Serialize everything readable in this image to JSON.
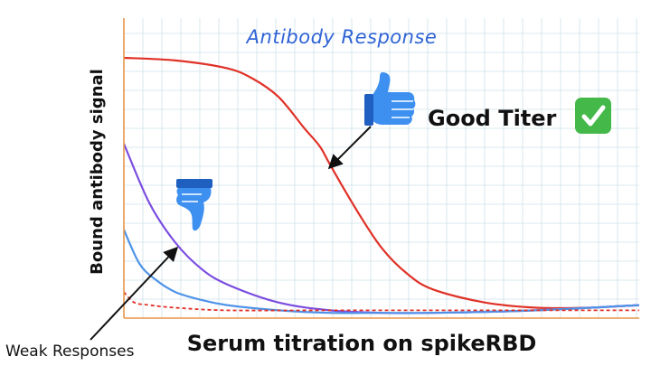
{
  "chart_data": {
    "type": "line",
    "title": "Antibody Response",
    "xlabel": "Serum titration on spikeRBD",
    "ylabel": "Bound antibody signal",
    "xlim": [
      0,
      100
    ],
    "ylim": [
      0,
      100
    ],
    "grid": true,
    "series": [
      {
        "color": "#e03127",
        "dashed": false,
        "x": [
          0,
          10,
          20,
          25,
          30,
          35,
          38,
          40,
          45,
          50,
          55,
          60,
          70,
          80,
          90,
          100
        ],
        "y": [
          100,
          99,
          96,
          92,
          85,
          73,
          66,
          59,
          42,
          27,
          17,
          11,
          6,
          4,
          4,
          5
        ]
      },
      {
        "color": "#7b4de0",
        "dashed": false,
        "x": [
          0,
          5,
          10,
          15,
          20,
          30,
          40,
          50,
          60,
          80,
          100
        ],
        "y": [
          67,
          44,
          29,
          19,
          13,
          6,
          3,
          2,
          2,
          3,
          5
        ]
      },
      {
        "color": "#4f93e8",
        "dashed": false,
        "x": [
          0,
          3,
          6,
          10,
          15,
          20,
          30,
          40,
          50,
          60,
          80,
          100
        ],
        "y": [
          34,
          21,
          15,
          10,
          7,
          5,
          3,
          2,
          2,
          2,
          3,
          5
        ]
      },
      {
        "color": "#e03127",
        "dashed": true,
        "x": [
          0,
          2,
          5,
          10,
          20,
          40,
          60,
          80,
          100
        ],
        "y": [
          10,
          6,
          5,
          4,
          3,
          3,
          3,
          3,
          3
        ]
      }
    ],
    "annotations": [
      {
        "text": "Good Titer"
      },
      {
        "text": "Weak Responses"
      }
    ]
  },
  "colors": {
    "title": "#2f63d6",
    "axis": "#e8964a",
    "grid": "#cfe2ea",
    "thumb": "#3d8ff0",
    "check": "#45b84a"
  },
  "icons": {
    "good": [
      "thumbs-up-icon",
      "check-mark-icon"
    ],
    "weak": [
      "thumbs-down-icon"
    ]
  }
}
